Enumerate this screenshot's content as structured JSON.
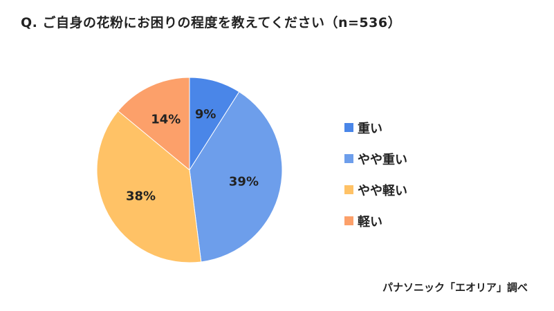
{
  "chart_data": {
    "type": "pie",
    "title": "Q. ご自身の花粉にお困りの程度を教えてください（n=536）",
    "categories": [
      "重い",
      "やや重い",
      "やや軽い",
      "軽い"
    ],
    "values": [
      9,
      39,
      38,
      14
    ],
    "value_labels": [
      "9%",
      "39%",
      "38%",
      "14%"
    ],
    "colors": [
      "#4A86E8",
      "#6D9EEB",
      "#FFC266",
      "#FCA06A"
    ],
    "legend_position": "right",
    "source": "パナソニック「エオリア」調べ"
  }
}
